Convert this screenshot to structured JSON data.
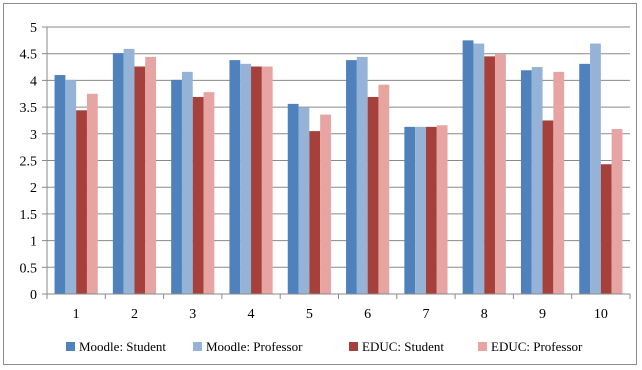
{
  "chart_data": {
    "type": "bar",
    "title": "",
    "xlabel": "",
    "ylabel": "",
    "categories": [
      "1",
      "2",
      "3",
      "4",
      "5",
      "6",
      "7",
      "8",
      "9",
      "10"
    ],
    "ylim": [
      0,
      5
    ],
    "yticks": [
      "0",
      "0.5",
      "1",
      "1.5",
      "2",
      "2.5",
      "3",
      "3.5",
      "4",
      "4.5",
      "5"
    ],
    "grid": "horizontal",
    "legend_position": "bottom",
    "series": [
      {
        "name": "Moodle: Student",
        "color": "#4f81bd",
        "values": [
          4.1,
          4.51,
          4.01,
          4.38,
          3.56,
          4.38,
          3.13,
          4.75,
          4.19,
          4.31
        ]
      },
      {
        "name": "Moodle: Professor",
        "color": "#95b3d7",
        "values": [
          4.01,
          4.59,
          4.16,
          4.31,
          3.49,
          4.44,
          3.13,
          4.69,
          4.25,
          4.69
        ]
      },
      {
        "name": "EDUC: Student",
        "color": "#a5403b",
        "values": [
          3.44,
          4.26,
          3.69,
          4.26,
          3.05,
          3.69,
          3.13,
          4.45,
          3.25,
          2.43
        ]
      },
      {
        "name": "EDUC: Professor",
        "color": "#e6a5a3",
        "values": [
          3.75,
          4.44,
          3.78,
          4.26,
          3.36,
          3.92,
          3.16,
          4.49,
          4.16,
          3.09
        ]
      }
    ]
  }
}
